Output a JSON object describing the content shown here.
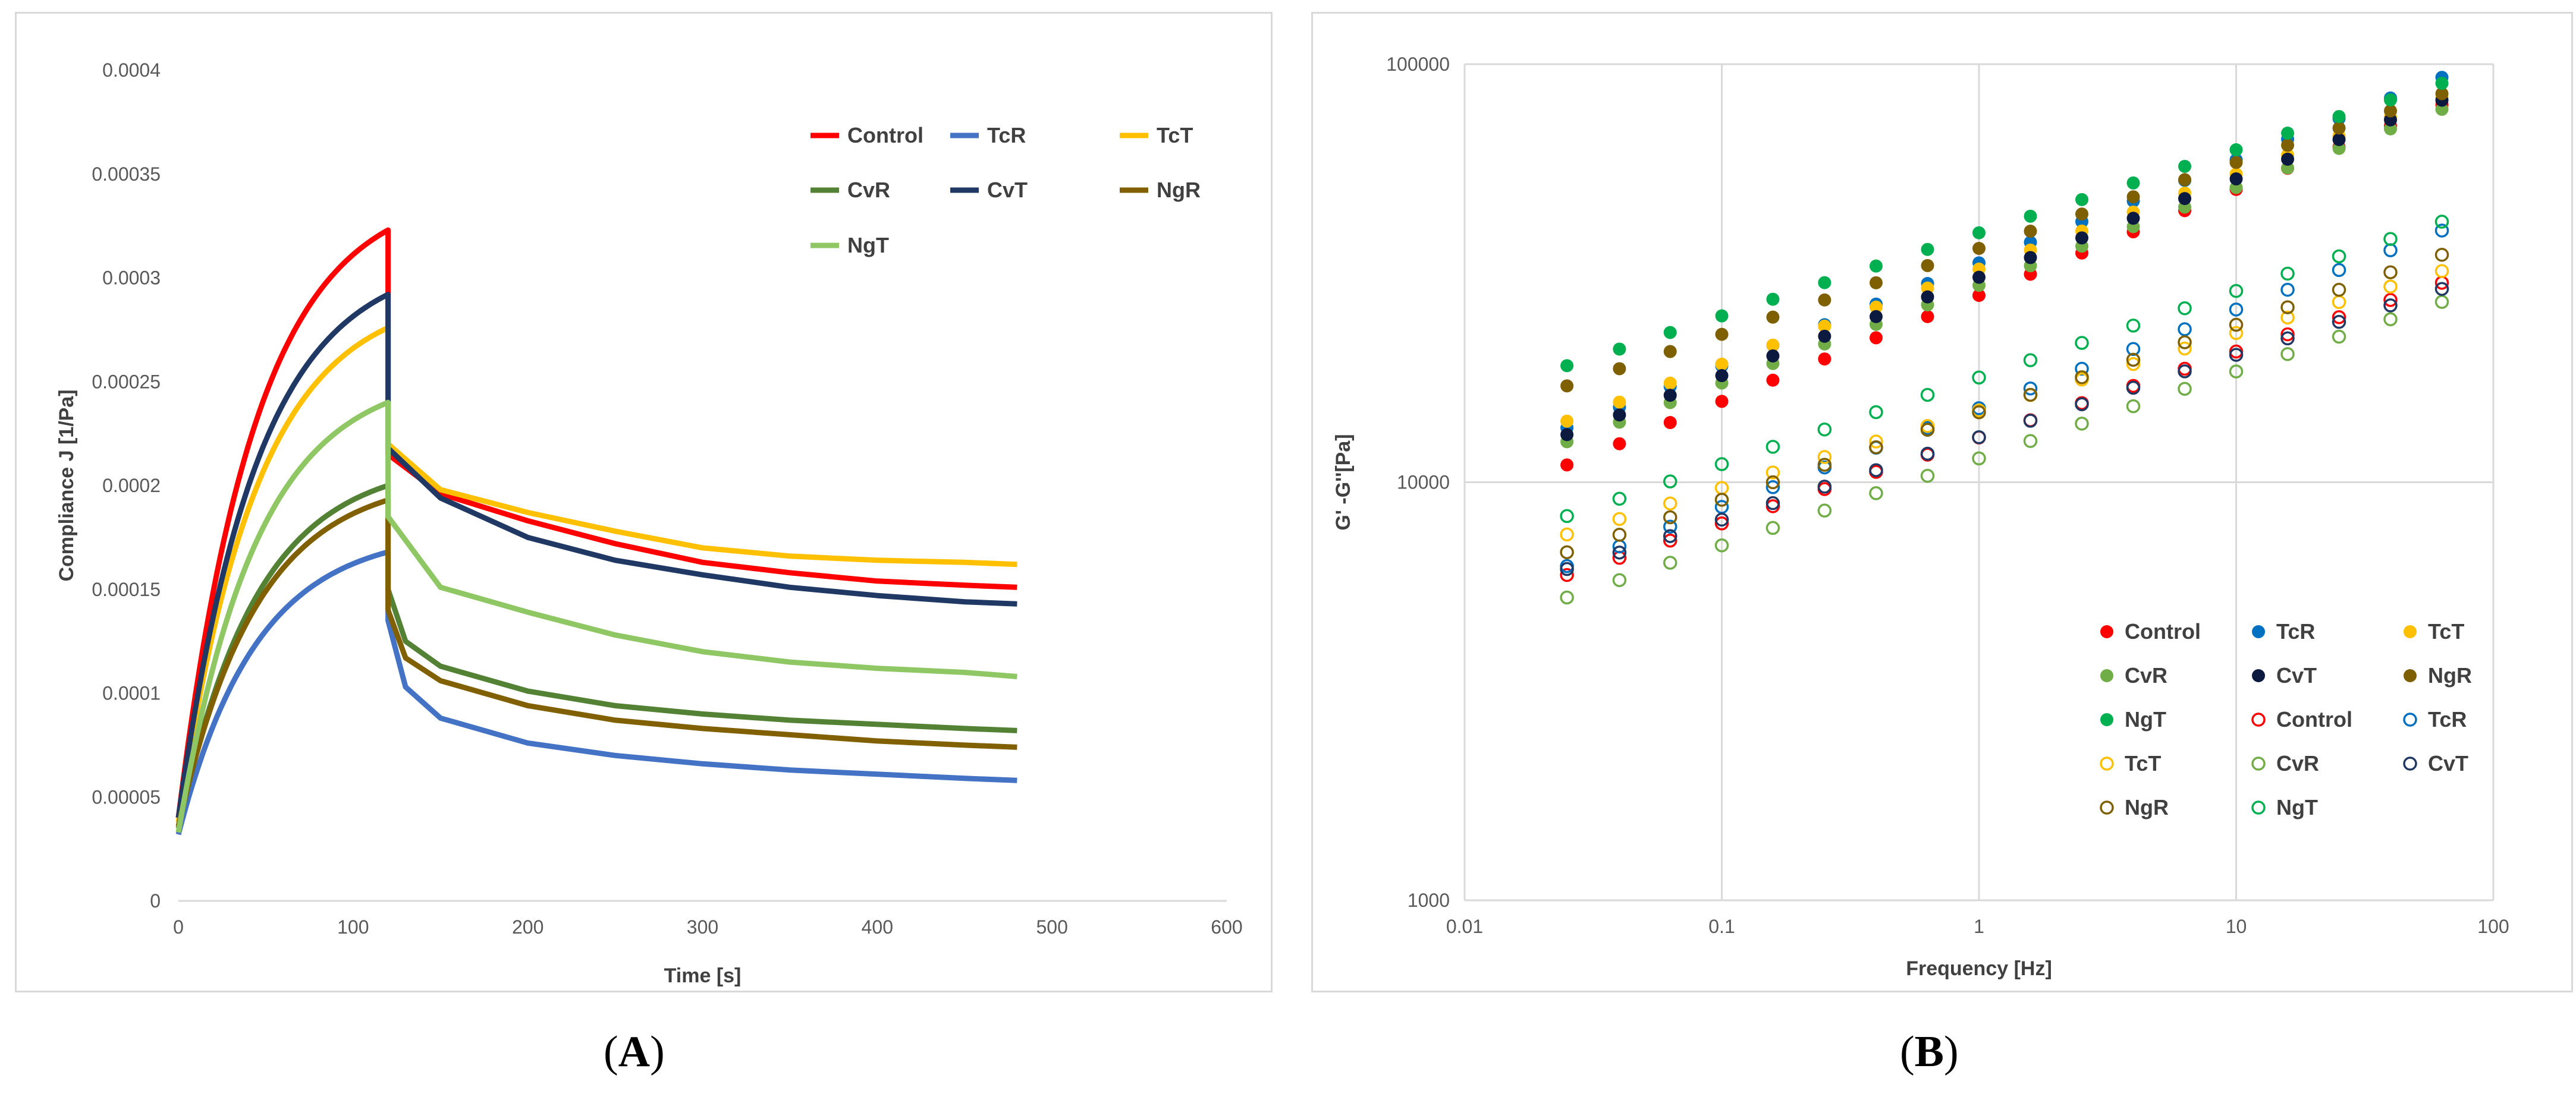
{
  "captions": {
    "a_open": "(",
    "a_letter": "A",
    "a_close": ")",
    "b_open": "(",
    "b_letter": "B",
    "b_close": ")"
  },
  "chart_data": [
    {
      "panel": "A",
      "type": "line",
      "title": "",
      "xlabel": "Time [s]",
      "ylabel": "Compliance J [1/Pa]",
      "xlim": [
        0,
        600
      ],
      "ylim": [
        0,
        0.0004
      ],
      "x_ticks": [
        "0",
        "100",
        "200",
        "300",
        "400",
        "500",
        "600"
      ],
      "y_ticks": [
        "0",
        "0.00005",
        "0.0001",
        "0.00015",
        "0.0002",
        "0.00025",
        "0.0003",
        "0.00035",
        "0.0004"
      ],
      "grid": false,
      "legend": "top-right",
      "series": [
        {
          "name": "Control",
          "color": "#ff0000",
          "start": 4e-05,
          "peak": 0.000323,
          "after": 0.000215,
          "points": [
            [
              150,
              0.000196
            ],
            [
              200,
              0.000183
            ],
            [
              250,
              0.000172
            ],
            [
              300,
              0.000163
            ],
            [
              350,
              0.000158
            ],
            [
              400,
              0.000154
            ],
            [
              450,
              0.000152
            ],
            [
              480,
              0.000151
            ]
          ]
        },
        {
          "name": "TcR",
          "color": "#4472c4",
          "start": 3.2e-05,
          "peak": 0.000168,
          "after": 0.000135,
          "points": [
            [
              130,
              0.000103
            ],
            [
              150,
              8.8e-05
            ],
            [
              200,
              7.6e-05
            ],
            [
              250,
              7e-05
            ],
            [
              300,
              6.6e-05
            ],
            [
              350,
              6.3e-05
            ],
            [
              400,
              6.1e-05
            ],
            [
              450,
              5.9e-05
            ],
            [
              480,
              5.8e-05
            ]
          ]
        },
        {
          "name": "TcT",
          "color": "#ffc000",
          "start": 3.8e-05,
          "peak": 0.000276,
          "after": 0.00022,
          "points": [
            [
              150,
              0.000198
            ],
            [
              200,
              0.000187
            ],
            [
              250,
              0.000178
            ],
            [
              300,
              0.00017
            ],
            [
              350,
              0.000166
            ],
            [
              400,
              0.000164
            ],
            [
              450,
              0.000163
            ],
            [
              480,
              0.000162
            ]
          ]
        },
        {
          "name": "CvR",
          "color": "#548235",
          "start": 3.5e-05,
          "peak": 0.0002,
          "after": 0.00015,
          "points": [
            [
              130,
              0.000125
            ],
            [
              150,
              0.000113
            ],
            [
              200,
              0.000101
            ],
            [
              250,
              9.4e-05
            ],
            [
              300,
              9e-05
            ],
            [
              350,
              8.7e-05
            ],
            [
              400,
              8.5e-05
            ],
            [
              450,
              8.3e-05
            ],
            [
              480,
              8.2e-05
            ]
          ]
        },
        {
          "name": "CvT",
          "color": "#203864",
          "start": 4e-05,
          "peak": 0.000292,
          "after": 0.000218,
          "points": [
            [
              150,
              0.000194
            ],
            [
              200,
              0.000175
            ],
            [
              250,
              0.000164
            ],
            [
              300,
              0.000157
            ],
            [
              350,
              0.000151
            ],
            [
              400,
              0.000147
            ],
            [
              450,
              0.000144
            ],
            [
              480,
              0.000143
            ]
          ]
        },
        {
          "name": "NgR",
          "color": "#806000",
          "start": 3.6e-05,
          "peak": 0.000193,
          "after": 0.00014,
          "points": [
            [
              130,
              0.000117
            ],
            [
              150,
              0.000106
            ],
            [
              200,
              9.4e-05
            ],
            [
              250,
              8.7e-05
            ],
            [
              300,
              8.3e-05
            ],
            [
              350,
              8e-05
            ],
            [
              400,
              7.7e-05
            ],
            [
              450,
              7.5e-05
            ],
            [
              480,
              7.4e-05
            ]
          ]
        },
        {
          "name": "NgT",
          "color": "#8fc764",
          "start": 3.3e-05,
          "peak": 0.00024,
          "after": 0.000185,
          "points": [
            [
              150,
              0.000151
            ],
            [
              200,
              0.000139
            ],
            [
              250,
              0.000128
            ],
            [
              300,
              0.00012
            ],
            [
              350,
              0.000115
            ],
            [
              400,
              0.000112
            ],
            [
              450,
              0.00011
            ],
            [
              480,
              0.000108
            ]
          ]
        }
      ]
    },
    {
      "panel": "B",
      "type": "scatter",
      "title": "",
      "xlabel": "Frequency [Hz]",
      "ylabel": "G' -G''[Pa]",
      "x_scale": "log",
      "y_scale": "log",
      "xlim": [
        0.01,
        100
      ],
      "ylim": [
        1000,
        100000
      ],
      "x_ticks": [
        "0.01",
        "0.1",
        "1",
        "10",
        "100"
      ],
      "y_ticks": [
        "1000",
        "10000",
        "100000"
      ],
      "grid": true,
      "legend": "bottom-right",
      "frequencies": [
        0.025,
        0.04,
        0.063,
        0.1,
        0.158,
        0.251,
        0.398,
        0.631,
        1,
        1.585,
        2.512,
        3.981,
        6.31,
        10,
        15.85,
        25.12,
        39.81,
        63.1
      ],
      "series": [
        {
          "name": "Control",
          "marker": "filled",
          "color": "#ff0000",
          "start": 11000,
          "end": 80000
        },
        {
          "name": "TcR",
          "marker": "filled",
          "color": "#0070c0",
          "start": 13500,
          "end": 93000
        },
        {
          "name": "TcT",
          "marker": "filled",
          "color": "#ffc000",
          "start": 14000,
          "end": 83000
        },
        {
          "name": "CvR",
          "marker": "filled",
          "color": "#70ad47",
          "start": 12500,
          "end": 78000
        },
        {
          "name": "CvT",
          "marker": "filled",
          "color": "#0d1a40",
          "start": 13000,
          "end": 82000
        },
        {
          "name": "NgR",
          "marker": "filled",
          "color": "#7f6000",
          "start": 17000,
          "end": 85000
        },
        {
          "name": "NgT",
          "marker": "filled",
          "color": "#00b050",
          "start": 19000,
          "end": 90000
        },
        {
          "name": "Control",
          "marker": "hollow",
          "color": "#ff0000",
          "start": 6000,
          "end": 30000
        },
        {
          "name": "TcR",
          "marker": "hollow",
          "color": "#0070c0",
          "start": 6300,
          "end": 40000
        },
        {
          "name": "TcT",
          "marker": "hollow",
          "color": "#ffc000",
          "start": 7500,
          "end": 32000
        },
        {
          "name": "CvR",
          "marker": "hollow",
          "color": "#70ad47",
          "start": 5300,
          "end": 27000
        },
        {
          "name": "CvT",
          "marker": "hollow",
          "color": "#203864",
          "start": 6200,
          "end": 29000
        },
        {
          "name": "NgR",
          "marker": "hollow",
          "color": "#7f6000",
          "start": 6800,
          "end": 35000
        },
        {
          "name": "NgT",
          "marker": "hollow",
          "color": "#00b050",
          "start": 8300,
          "end": 42000
        }
      ]
    }
  ]
}
